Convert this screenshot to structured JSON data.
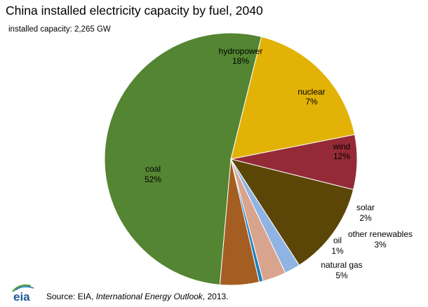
{
  "title": "China installed electricity capacity by fuel, 2040",
  "subtitle": "installed capacity: 2,265 GW",
  "source": {
    "prefix": "Source: EIA, ",
    "publication": "International Energy Outlook",
    "suffix": ", 2013."
  },
  "logo": {
    "text": "eia"
  },
  "chart_data": {
    "type": "pie",
    "title": "China installed electricity capacity by fuel, 2040",
    "subtitle": "installed capacity: 2,265 GW",
    "total_label": "installed capacity: 2,265 GW",
    "slices": [
      {
        "name": "hydropower",
        "label": "18%",
        "value": 18.0,
        "color": "#e2b206"
      },
      {
        "name": "nuclear",
        "label": "7%",
        "value": 7.0,
        "color": "#952a37"
      },
      {
        "name": "wind",
        "label": "12%",
        "value": 12.0,
        "color": "#5b4607"
      },
      {
        "name": "solar",
        "label": "2%",
        "value": 2.0,
        "color": "#8fb4e3"
      },
      {
        "name": "other renewables",
        "label": "3%",
        "value": 3.0,
        "color": "#d9a48e"
      },
      {
        "name": "oil",
        "label": "1%",
        "value": 0.5,
        "color": "#1f7fbf"
      },
      {
        "name": "natural gas",
        "label": "5%",
        "value": 5.0,
        "color": "#a55e21"
      },
      {
        "name": "coal",
        "label": "52%",
        "value": 52.5,
        "color": "#548532"
      }
    ],
    "start": "right of top, clockwise",
    "legend": "none (labels on slices)"
  }
}
